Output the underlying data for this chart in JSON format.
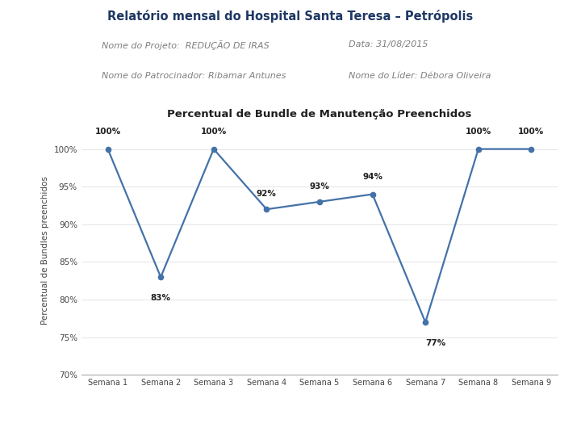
{
  "title": "Relatório mensal do Hospital Santa Teresa – Petrópolis",
  "header_line1_left": "Nome do Projeto:  REDUÇÃO DE IRAS",
  "header_line2_left": "Nome do Patrocinador: Ribamar Antunes",
  "header_line1_right": "Data: 31/08/2015",
  "header_line2_right": "Nome do Líder: Débora Oliveira",
  "chart_title": "Percentual de Bundle de Manutenção Preenchidos",
  "ylabel": "Percentual de Bundles preenchidos",
  "x_labels": [
    "Semana 1",
    "Semana 2",
    "Semana 3",
    "Semana 4",
    "Semana 5",
    "Semana 6",
    "Semana 7",
    "Semana 8",
    "Semana 9"
  ],
  "y_values": [
    100,
    83,
    100,
    92,
    93,
    94,
    77,
    100,
    100
  ],
  "line_color": "#4472a8",
  "marker_color": "#4472a8",
  "ylim": [
    70,
    103
  ],
  "yticks": [
    70,
    75,
    80,
    85,
    90,
    95,
    100
  ],
  "header_bg": "#dce6f1",
  "title_color": "#1f3864",
  "header_text_color": "#7f7f7f",
  "data_label_color": "#1f1f1f",
  "separator_color": "#aaaaaa",
  "grid_color": "#d9d9d9",
  "spine_color": "#aaaaaa"
}
